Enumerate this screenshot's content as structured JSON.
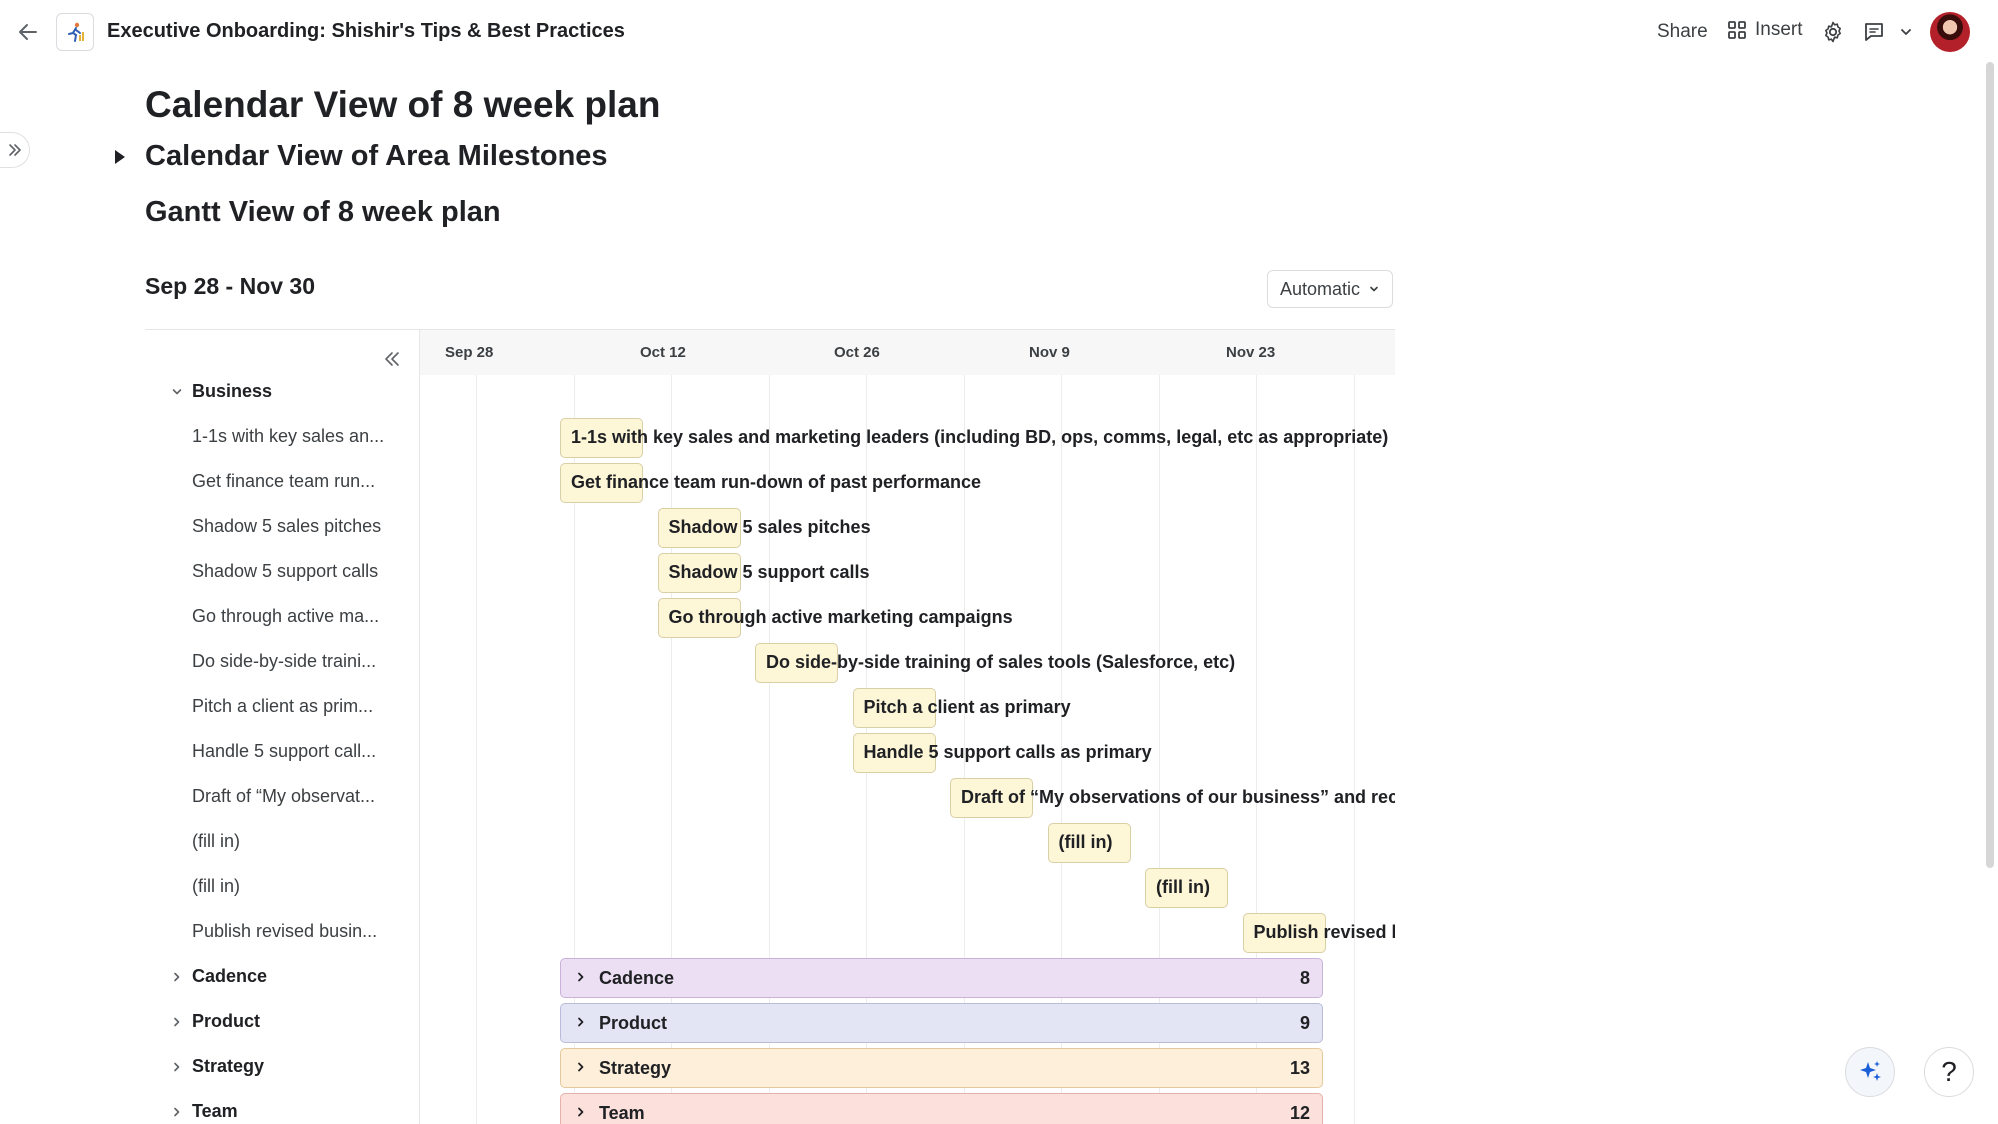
{
  "topbar": {
    "doc_title": "Executive Onboarding: Shishir's Tips & Best Practices",
    "share_label": "Share",
    "insert_label": "Insert"
  },
  "headings": {
    "h1": "Calendar View of 8 week plan",
    "h2": "Calendar View of Area Milestones",
    "h3": "Gantt View of 8 week plan"
  },
  "gantt": {
    "range_label": "Sep 28 - Nov 30",
    "view_select": "Automatic",
    "timeline_dates": [
      "Sep 28",
      "Oct 12",
      "Oct 26",
      "Nov 9",
      "Nov 23"
    ],
    "open_group": {
      "name": "Business"
    },
    "business_items": [
      {
        "short": "1-1s with key sales an...",
        "full": "1-1s with key sales and marketing leaders (including BD, ops, comms, legal, etc as appropriate)"
      },
      {
        "short": "Get finance team run...",
        "full": "Get finance team run-down of past performance"
      },
      {
        "short": "Shadow 5 sales pitches",
        "full": "Shadow 5 sales pitches"
      },
      {
        "short": "Shadow 5 support calls",
        "full": "Shadow 5 support calls"
      },
      {
        "short": "Go through active ma...",
        "full": "Go through active marketing campaigns"
      },
      {
        "short": "Do side-by-side traini...",
        "full": "Do side-by-side training of sales tools (Salesforce, etc)"
      },
      {
        "short": "Pitch a client as prim...",
        "full": "Pitch a client as primary"
      },
      {
        "short": "Handle 5 support call...",
        "full": "Handle 5 support calls as primary"
      },
      {
        "short": "Draft of “My observat...",
        "full": "Draft of “My observations of our business” and recon"
      },
      {
        "short": "(fill in)",
        "full": "(fill in)"
      },
      {
        "short": "(fill in)",
        "full": "(fill in)"
      },
      {
        "short": "Publish revised busin...",
        "full": "Publish revised bu"
      }
    ],
    "collapsed_groups": [
      {
        "name": "Cadence",
        "count": "8",
        "color": "#ecdff3",
        "border": "#c9b3d8"
      },
      {
        "name": "Product",
        "count": "9",
        "color": "#e4e5f4",
        "border": "#b9bcd9"
      },
      {
        "name": "Strategy",
        "count": "13",
        "color": "#fdefd9",
        "border": "#e3c99c"
      },
      {
        "name": "Team",
        "count": "12",
        "color": "#fbe0dc",
        "border": "#e4b2aa"
      }
    ]
  },
  "colors": {
    "task_fill": "#fdf6d7",
    "task_border": "#d9cfa5"
  }
}
